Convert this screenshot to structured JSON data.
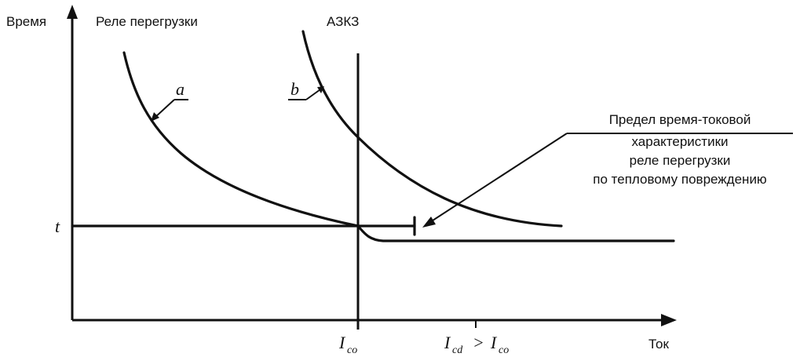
{
  "axes": {
    "y_label": "Время",
    "x_label": "Ток",
    "t_label": "t"
  },
  "labels": {
    "overload_relay": "Реле перегрузки",
    "azkz": "АЗКЗ",
    "curve_a": "a",
    "curve_b": "b",
    "limit_text": [
      "Предел время-токовой",
      "характеристики",
      "реле перегрузки",
      "по тепловому повреждению"
    ]
  },
  "ticks": {
    "ico_main": "I",
    "ico_sub": "co",
    "icd_main": "I",
    "icd_sub": "cd",
    "gt": ">",
    "ico2_main": "I",
    "ico2_sub": "co"
  },
  "colors": {
    "ink": "#111111",
    "background": "#ffffff"
  }
}
